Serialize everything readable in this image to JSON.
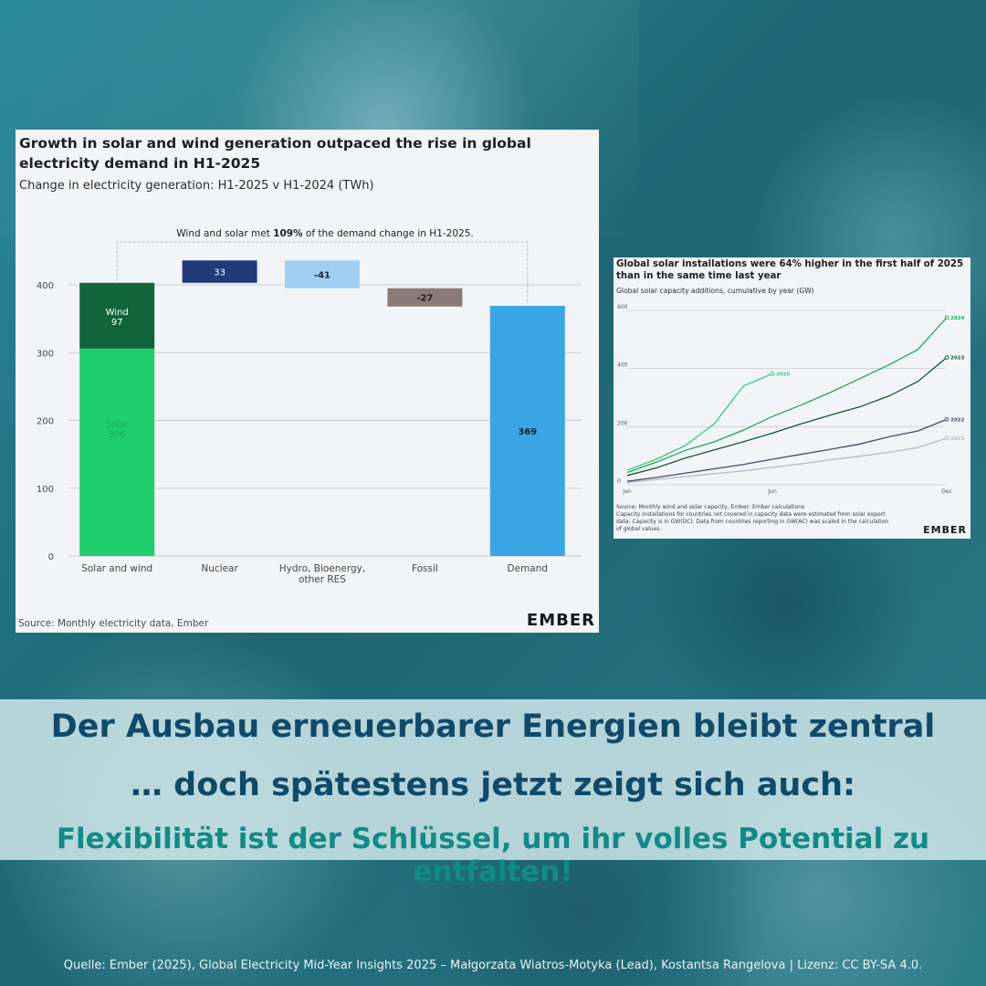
{
  "banner": {
    "line1": "Der Ausbau erneuerbarer Energien bleibt zentral",
    "line2": "… doch spätestens jetzt zeigt sich auch:",
    "line3": "Flexibilität ist der Schlüssel, um ihr volles Potential zu entfalten!"
  },
  "footer": {
    "source": "Quelle: Ember (2025), Global Electricity Mid-Year Insights 2025 – Małgorzata Wiatros-Motyka (Lead), Kostantsa Rangelova | Lizenz: CC BY-SA 4.0."
  },
  "colors": {
    "wind": "#10663a",
    "solar": "#1fcf6e",
    "nuclear": "#223a7a",
    "hydro": "#9ecff0",
    "fossil": "#8a7a78",
    "demand": "#3aa6e6",
    "line_2025": "#2fd07a",
    "line_2024": "#1aa85a",
    "line_2023": "#0f5a32",
    "line_2022": "#4a4a66",
    "line_2021": "#b8b8c4"
  },
  "chart_data": [
    {
      "type": "bar",
      "variant": "waterfall",
      "title": "Growth in solar and wind generation outpaced the rise in global electricity demand in H1-2025",
      "subtitle": "Change in electricity generation: H1-2025 v H1-2024 (TWh)",
      "annotation_pre": "Wind and solar met ",
      "annotation_bold": "109%",
      "annotation_post": " of the demand change in H1-2025.",
      "source": "Source: Monthly electricity data, Ember",
      "brand": "EMBER",
      "categories": [
        "Solar and wind",
        "Nuclear",
        "Hydro, Bioenergy,",
        "Fossil",
        "Demand"
      ],
      "category_line2": [
        "",
        "",
        "other RES",
        "",
        ""
      ],
      "ylim": [
        0,
        400
      ],
      "yticks": [
        0,
        100,
        200,
        300,
        400
      ],
      "solar_wind": {
        "solar_label": "Solar",
        "solar": 306,
        "wind_label": "Wind",
        "wind": 97
      },
      "steps": [
        {
          "label": "33",
          "value": 33
        },
        {
          "label": "-41",
          "value": -41
        },
        {
          "label": "-27",
          "value": -27
        }
      ],
      "demand": {
        "label": "369",
        "value": 369
      }
    },
    {
      "type": "line",
      "title_line1": "Global solar installations were 64% higher in the first half of 2025",
      "title_line2": "than in the same time last year",
      "subtitle": "Global solar capacity additions, cumulative by year (GW)",
      "x_labels": [
        "Jan",
        "Jun",
        "Dec"
      ],
      "ylim": [
        0,
        600
      ],
      "yticks": [
        0,
        200,
        400,
        600
      ],
      "series": [
        {
          "name": "2025",
          "values": [
            50,
            88,
            135,
            210,
            340,
            382
          ]
        },
        {
          "name": "2024",
          "values": [
            42,
            78,
            118,
            148,
            188,
            235,
            275,
            318,
            365,
            412,
            465,
            575
          ]
        },
        {
          "name": "2023",
          "values": [
            32,
            58,
            92,
            120,
            148,
            178,
            210,
            240,
            268,
            305,
            355,
            438
          ]
        },
        {
          "name": "2022",
          "values": [
            12,
            25,
            40,
            55,
            70,
            88,
            105,
            122,
            140,
            165,
            185,
            225
          ]
        },
        {
          "name": "2021",
          "values": [
            8,
            18,
            28,
            38,
            48,
            60,
            72,
            86,
            98,
            112,
            128,
            160
          ]
        }
      ],
      "notes": [
        "Source: Monthly wind and solar capacity, Ember; Ember calculations",
        "Capacity installations for countries not covered in capacity data were estimated from solar export",
        "data; Capacity is in GW(DC). Data from countries reporting in GW(AC) was scaled in the calculation",
        "of global values."
      ],
      "brand": "EMBER"
    }
  ]
}
